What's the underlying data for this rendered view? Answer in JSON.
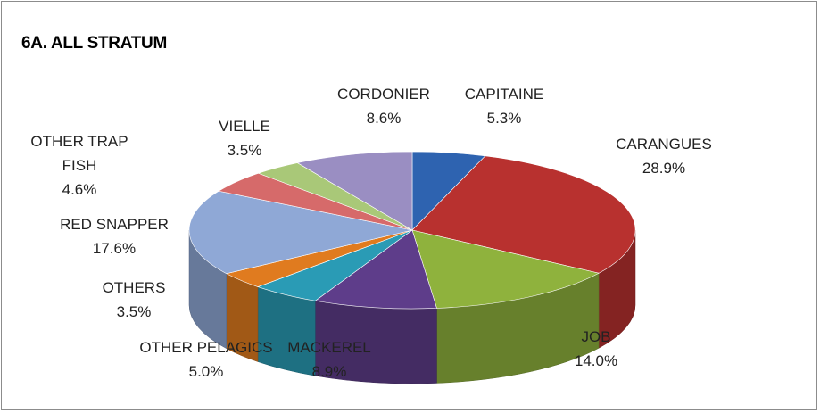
{
  "chart_data": {
    "type": "pie",
    "title": "6A. ALL STRATUM",
    "categories": [
      "CAPITAINE",
      "CARANGUES",
      "JOB",
      "MACKEREL",
      "OTHER PELAGICS",
      "OTHERS",
      "RED SNAPPER",
      "OTHER TRAP FISH",
      "VIELLE",
      "CORDONIER"
    ],
    "values": [
      5.3,
      28.9,
      14.0,
      8.9,
      5.0,
      3.5,
      17.6,
      4.6,
      3.5,
      8.6
    ],
    "value_labels": [
      "5.3%",
      "28.9%",
      "14.0%",
      "8.9%",
      "5.0%",
      "3.5%",
      "17.6%",
      "4.6%",
      "3.5%",
      "8.6%"
    ],
    "colors": [
      "#2e63b0",
      "#b8312f",
      "#8fb23d",
      "#5e3d8a",
      "#2a9bb5",
      "#e07b1f",
      "#8fa8d6",
      "#d66a6a",
      "#a9c878",
      "#9a8ec2"
    ]
  }
}
